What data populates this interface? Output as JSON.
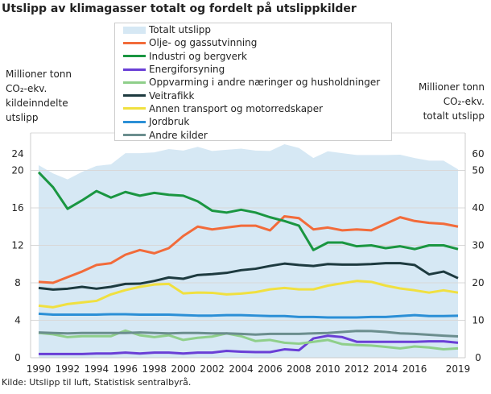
{
  "chart_data": {
    "type": "line",
    "title": "Utslipp av klimagasser totalt og fordelt på utslippkilder",
    "ylabel_left": [
      "Millioner tonn",
      "CO₂-ekv.",
      "kildeinndelte",
      "utslipp"
    ],
    "ylabel_right": [
      "Millioner tonn",
      "CO₂-ekv.",
      "totalt utslipp"
    ],
    "ylim_left": [
      0,
      24
    ],
    "ylim_right": [
      0,
      60
    ],
    "yticks_left": [
      0,
      4,
      8,
      12,
      16,
      20,
      24
    ],
    "yticks_right": [
      0,
      10,
      20,
      30,
      40,
      50,
      60
    ],
    "xticks": [
      1990,
      1992,
      1994,
      1996,
      1998,
      2000,
      2002,
      2004,
      2006,
      2008,
      2010,
      2012,
      2014,
      2016,
      2019
    ],
    "grid": true,
    "legend_position": "top-center",
    "x": [
      1990,
      1991,
      1992,
      1993,
      1994,
      1995,
      1996,
      1997,
      1998,
      1999,
      2000,
      2001,
      2002,
      2003,
      2004,
      2005,
      2006,
      2007,
      2008,
      2009,
      2010,
      2011,
      2012,
      2013,
      2014,
      2015,
      2016,
      2017,
      2018,
      2019
    ],
    "area": {
      "name": "Totalt utslipp",
      "axis": "right",
      "color": "#d6e8f4",
      "values": [
        51.4,
        49.2,
        47.6,
        49.6,
        51.2,
        51.6,
        54.6,
        54.6,
        54.8,
        55.7,
        55.3,
        56.3,
        55.2,
        55.5,
        55.8,
        55.3,
        55.2,
        57.0,
        56.0,
        53.3,
        55.1,
        54.6,
        54.1,
        54.1,
        54.1,
        54.2,
        53.3,
        52.6,
        52.6,
        50.3
      ]
    },
    "series": [
      {
        "name": "Olje- og gassutvinning",
        "color": "#f26b3a",
        "values": [
          8.1,
          8.0,
          8.6,
          9.2,
          9.9,
          10.1,
          11.0,
          11.5,
          11.15,
          11.7,
          13.0,
          14.0,
          13.7,
          13.9,
          14.1,
          14.1,
          13.6,
          15.1,
          14.9,
          13.7,
          13.9,
          13.6,
          13.7,
          13.6,
          14.3,
          15.0,
          14.6,
          14.4,
          14.3,
          14.0
        ]
      },
      {
        "name": "Industri og bergverk",
        "color": "#1a9641",
        "values": [
          19.8,
          18.2,
          15.9,
          16.8,
          17.8,
          17.1,
          17.7,
          17.3,
          17.6,
          17.4,
          17.3,
          16.7,
          15.7,
          15.5,
          15.8,
          15.5,
          15.0,
          14.6,
          14.1,
          11.5,
          12.3,
          12.3,
          11.9,
          12.0,
          11.7,
          11.9,
          11.6,
          12.0,
          12.0,
          11.6
        ]
      },
      {
        "name": "Energiforsyning",
        "color": "#6a3fd6",
        "values": [
          0.4,
          0.4,
          0.4,
          0.4,
          0.45,
          0.45,
          0.55,
          0.45,
          0.55,
          0.55,
          0.45,
          0.55,
          0.55,
          0.73,
          0.65,
          0.6,
          0.6,
          0.9,
          0.8,
          2.06,
          2.35,
          2.2,
          1.7,
          1.7,
          1.7,
          1.7,
          1.7,
          1.75,
          1.75,
          1.6
        ]
      },
      {
        "name": "Oppvarming i andre næringer og husholdninger",
        "color": "#8fcf8a",
        "values": [
          2.65,
          2.5,
          2.2,
          2.3,
          2.3,
          2.3,
          2.9,
          2.4,
          2.2,
          2.4,
          1.9,
          2.13,
          2.26,
          2.6,
          2.3,
          1.78,
          1.9,
          1.6,
          1.5,
          1.7,
          1.9,
          1.45,
          1.35,
          1.3,
          1.16,
          1.0,
          1.2,
          1.1,
          0.9,
          1.0
        ]
      },
      {
        "name": "Veitrafikk",
        "color": "#1d3a3f",
        "values": [
          7.45,
          7.28,
          7.37,
          7.57,
          7.37,
          7.57,
          7.88,
          7.91,
          8.2,
          8.57,
          8.43,
          8.83,
          8.92,
          9.06,
          9.35,
          9.5,
          9.8,
          10.05,
          9.9,
          9.8,
          10.0,
          9.95,
          9.95,
          10.0,
          10.1,
          10.1,
          9.9,
          8.9,
          9.2,
          8.5
        ]
      },
      {
        "name": "Annen transport og motorredskaper",
        "color": "#f0e040",
        "values": [
          5.56,
          5.39,
          5.73,
          5.9,
          6.07,
          6.76,
          7.22,
          7.57,
          7.82,
          7.88,
          6.87,
          6.96,
          6.93,
          6.76,
          6.85,
          7.0,
          7.3,
          7.45,
          7.3,
          7.3,
          7.7,
          7.95,
          8.2,
          8.1,
          7.7,
          7.4,
          7.2,
          6.95,
          7.2,
          6.95
        ]
      },
      {
        "name": "Jordbruk",
        "color": "#2b8fd6",
        "values": [
          4.7,
          4.6,
          4.6,
          4.6,
          4.6,
          4.65,
          4.65,
          4.6,
          4.6,
          4.6,
          4.55,
          4.5,
          4.5,
          4.55,
          4.55,
          4.5,
          4.45,
          4.45,
          4.35,
          4.35,
          4.3,
          4.3,
          4.3,
          4.35,
          4.35,
          4.45,
          4.55,
          4.45,
          4.45,
          4.48
        ]
      },
      {
        "name": "Andre kilder",
        "color": "#6b8e8e",
        "values": [
          2.7,
          2.65,
          2.6,
          2.65,
          2.65,
          2.65,
          2.65,
          2.7,
          2.65,
          2.6,
          2.65,
          2.65,
          2.6,
          2.6,
          2.55,
          2.47,
          2.55,
          2.55,
          2.55,
          2.6,
          2.65,
          2.75,
          2.86,
          2.85,
          2.75,
          2.6,
          2.55,
          2.45,
          2.35,
          2.28
        ]
      }
    ]
  },
  "source": "Kilde: Utslipp til luft, Statistisk sentralbyrå."
}
